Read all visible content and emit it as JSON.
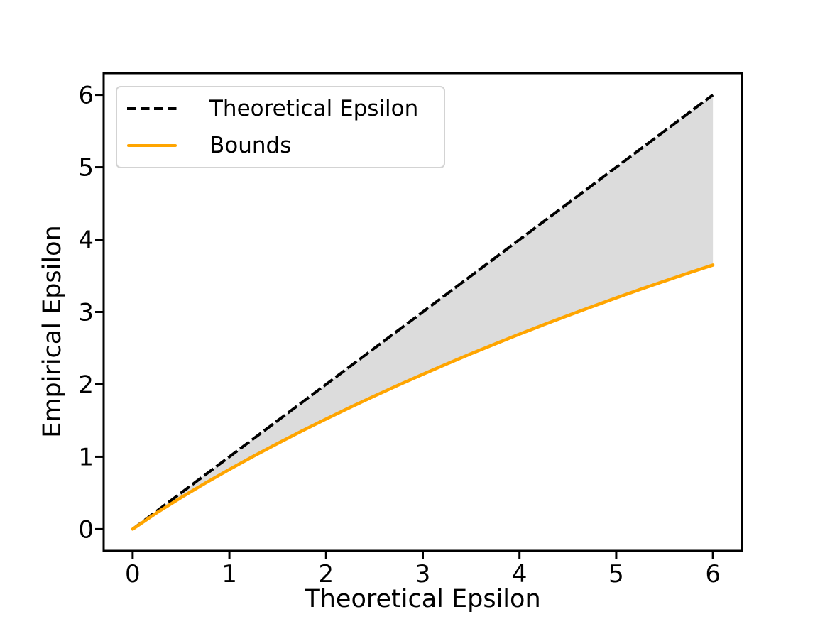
{
  "chart_data": {
    "type": "line",
    "title": "",
    "xlabel": "Theoretical Epsilon",
    "ylabel": "Empirical Epsilon",
    "xlim": [
      -0.3,
      6.3
    ],
    "ylim": [
      -0.3,
      6.3
    ],
    "xticks": [
      0,
      1,
      2,
      3,
      4,
      5,
      6
    ],
    "yticks": [
      0,
      1,
      2,
      3,
      4,
      5,
      6
    ],
    "grid": false,
    "legend_position": "upper-left",
    "series": [
      {
        "name": "Theoretical Epsilon",
        "style": "dashed",
        "color": "#000000",
        "x": [
          0,
          6
        ],
        "y": [
          0,
          6
        ]
      },
      {
        "name": "Bounds",
        "style": "solid",
        "color": "#FFA500",
        "x": [
          0,
          0.25,
          0.5,
          0.75,
          1,
          1.25,
          1.5,
          1.75,
          2,
          2.25,
          2.5,
          2.75,
          3,
          3.25,
          3.5,
          3.75,
          4,
          4.25,
          4.5,
          4.75,
          5,
          5.25,
          5.5,
          5.75,
          6
        ],
        "y": [
          0,
          0.227,
          0.436,
          0.635,
          0.825,
          1.008,
          1.185,
          1.356,
          1.522,
          1.683,
          1.839,
          1.991,
          2.139,
          2.283,
          2.424,
          2.56,
          2.694,
          2.824,
          2.95,
          3.074,
          3.195,
          3.312,
          3.427,
          3.539,
          3.648
        ]
      }
    ],
    "fill_between": {
      "upper": "Theoretical Epsilon",
      "lower": "Bounds",
      "color": "#DCDCDC"
    },
    "colors": {
      "theoretical_line": "#000000",
      "bounds_line": "#FFA500",
      "fill": "#DCDCDC",
      "background": "#FFFFFF",
      "legend_border": "#D3D3D3",
      "spine": "#000000"
    }
  }
}
